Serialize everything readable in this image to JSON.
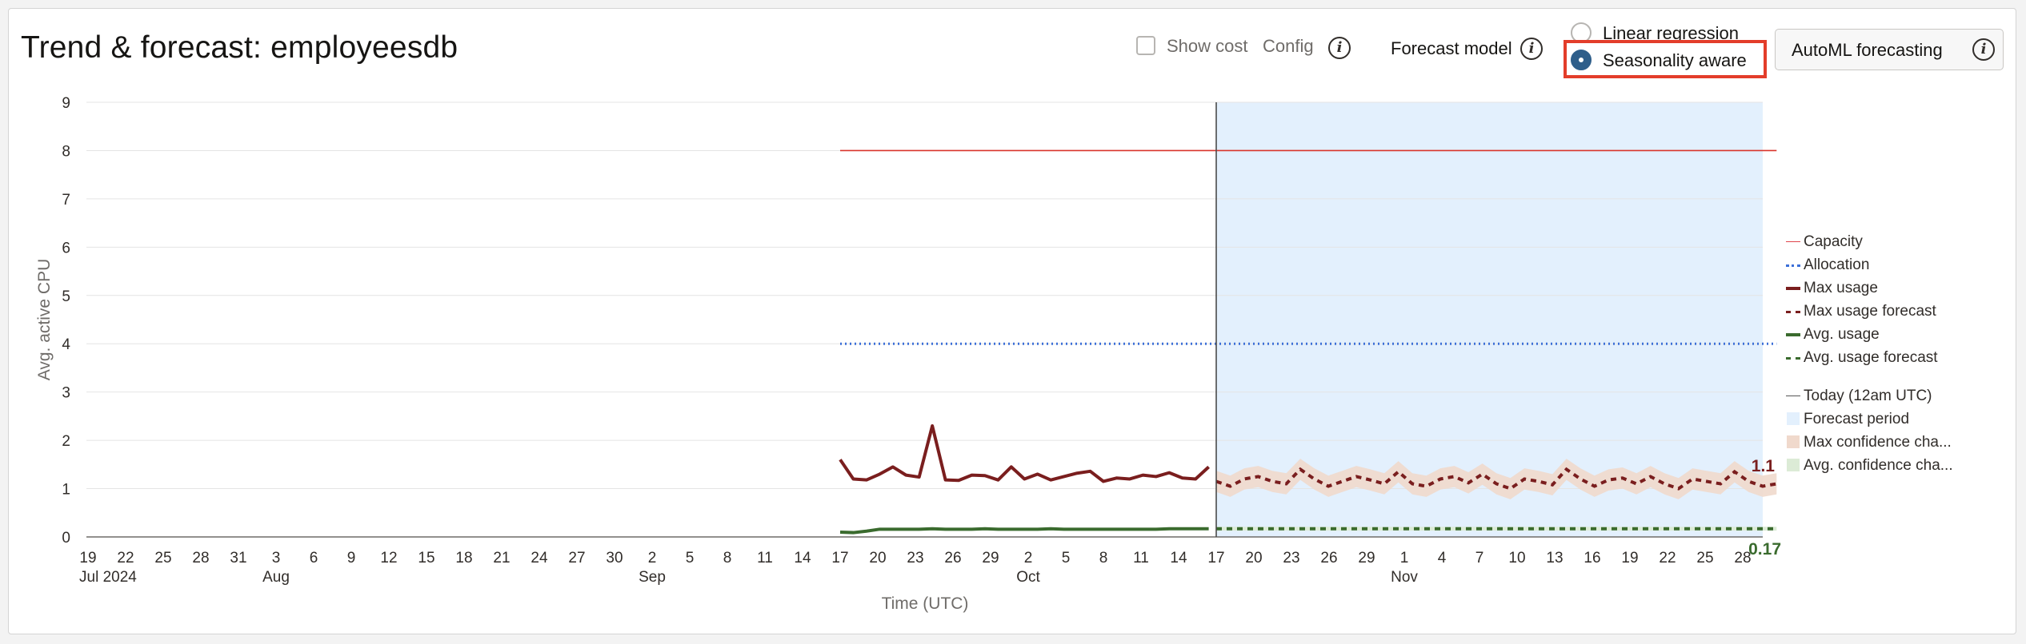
{
  "header": {
    "title": "Trend & forecast: employeesdb",
    "show_cost_label": "Show cost",
    "config_label": "Config",
    "forecast_model_label": "Forecast model",
    "model_options": [
      {
        "label": "Linear regression",
        "selected": false
      },
      {
        "label": "Seasonality aware",
        "selected": true
      }
    ],
    "automl_button_label": "AutoML forecasting"
  },
  "legend": {
    "items": [
      {
        "label": "Capacity",
        "color": "#e0454b",
        "style": "thin-solid"
      },
      {
        "label": "Allocation",
        "color": "#3b6fd8",
        "style": "dotted"
      },
      {
        "label": "Max usage",
        "color": "#7a1e1e",
        "style": "thick-solid"
      },
      {
        "label": "Max usage forecast",
        "color": "#7a1e1e",
        "style": "dashed"
      },
      {
        "label": "Avg. usage",
        "color": "#3a6b2e",
        "style": "thick-solid"
      },
      {
        "label": "Avg. usage forecast",
        "color": "#3a6b2e",
        "style": "dashed"
      },
      {
        "label": "Today (12am UTC)",
        "color": "#555555",
        "style": "thin-solid"
      },
      {
        "label": "Forecast period",
        "color": "#e3f0fd",
        "style": "box"
      },
      {
        "label": "Max confidence cha...",
        "color": "#f0d9cc",
        "style": "box"
      },
      {
        "label": "Avg. confidence cha...",
        "color": "#dcebd6",
        "style": "box"
      }
    ]
  },
  "chart_data": {
    "type": "line",
    "xlabel": "Time (UTC)",
    "ylabel": "Avg. active CPU",
    "ylim": [
      0,
      9
    ],
    "yticks": [
      0,
      1,
      2,
      3,
      4,
      5,
      6,
      7,
      8,
      9
    ],
    "xticks": [
      "19",
      "22",
      "25",
      "28",
      "31",
      "3",
      "6",
      "9",
      "12",
      "15",
      "18",
      "21",
      "24",
      "27",
      "30",
      "2",
      "5",
      "8",
      "11",
      "14",
      "17",
      "20",
      "23",
      "26",
      "29",
      "2",
      "5",
      "8",
      "11",
      "14",
      "17",
      "20",
      "23",
      "26",
      "29",
      "1",
      "4",
      "7",
      "10",
      "13",
      "16",
      "19",
      "22",
      "25",
      "28"
    ],
    "month_labels": [
      {
        "label": "Jul 2024",
        "tick_index": 0
      },
      {
        "label": "Aug",
        "tick_index": 5
      },
      {
        "label": "Sep",
        "tick_index": 15
      },
      {
        "label": "Oct",
        "tick_index": 25
      },
      {
        "label": "Nov",
        "tick_index": 35
      }
    ],
    "capacity": {
      "value": 8,
      "start_tick": 20,
      "end_tick": 44.9
    },
    "allocation": {
      "value": 4,
      "start_tick": 20,
      "end_tick": 44.9
    },
    "today_tick": 30,
    "forecast_period": {
      "start_tick": 30,
      "end_tick": 44.9
    },
    "max_usage": [
      1.6,
      1.2,
      1.18,
      1.3,
      1.45,
      1.28,
      1.24,
      2.3,
      1.18,
      1.17,
      1.28,
      1.27,
      1.18,
      1.45,
      1.2,
      1.3,
      1.18,
      1.25,
      1.32,
      1.36,
      1.15,
      1.22,
      1.2,
      1.28,
      1.25,
      1.33,
      1.22,
      1.2,
      1.45
    ],
    "max_usage_start_tick": 20,
    "max_usage_step": 0.35,
    "avg_usage": [
      0.1,
      0.09,
      0.12,
      0.16,
      0.16,
      0.16,
      0.16,
      0.17,
      0.16,
      0.16,
      0.16,
      0.17,
      0.16,
      0.16,
      0.16,
      0.16,
      0.17,
      0.16,
      0.16,
      0.16,
      0.16,
      0.16,
      0.16,
      0.16,
      0.16,
      0.17,
      0.17,
      0.17,
      0.17
    ],
    "max_forecast": [
      1.15,
      1.05,
      1.2,
      1.25,
      1.15,
      1.1,
      1.4,
      1.2,
      1.05,
      1.15,
      1.25,
      1.18,
      1.1,
      1.35,
      1.1,
      1.05,
      1.2,
      1.25,
      1.12,
      1.3,
      1.1,
      1.0,
      1.2,
      1.15,
      1.08,
      1.4,
      1.2,
      1.05,
      1.18,
      1.22,
      1.1,
      1.25,
      1.1,
      1.0,
      1.2,
      1.15,
      1.1,
      1.35,
      1.15,
      1.05,
      1.1
    ],
    "max_forecast_end_label": "1.1",
    "avg_forecast_value": 0.17,
    "avg_forecast_end_label": "0.17"
  }
}
